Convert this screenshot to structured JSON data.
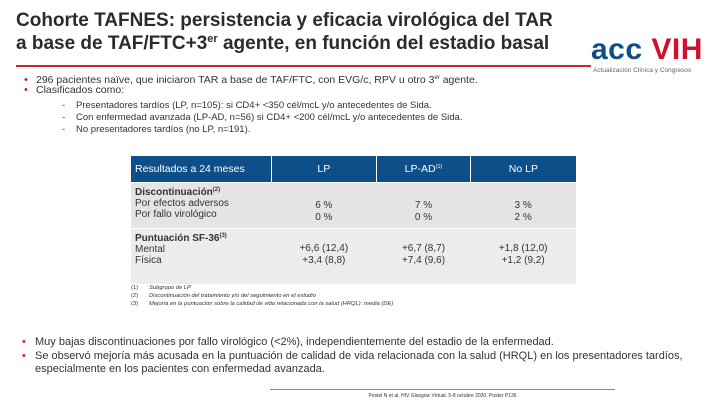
{
  "title": {
    "line1": "Cohorte TAFNES: persistencia y eficacia virológica del TAR",
    "line2_pre": "a base de TAF/FTC+3",
    "line2_sup": "er",
    "line2_post": " agente, en función del estadio basal"
  },
  "logo": {
    "part_a": "acc",
    "part_b": " VIH",
    "subtitle": "Actualización Clínica y Congresos"
  },
  "bullets_top": [
    {
      "pre": "296 pacientes naïve, que iniciaron TAR a base de TAF/FTC, con EVG/c, RPV u otro 3",
      "sup": "er",
      "post": " agente."
    },
    {
      "pre": "Clasificados como:",
      "sup": "",
      "post": ""
    }
  ],
  "subitems": [
    "Presentadores tardíos (LP, n=105): si CD4+ <350 cél/mcL y/o antecedentes de Sida.",
    "Con enfermedad avanzada (LP-AD, n=56) si CD4+ <200 cél/mcL y/o antecedentes de Sida.",
    "No presentadores tardíos (no LP, n=191)."
  ],
  "table": {
    "headers": [
      "Resultados a 24 meses",
      "LP",
      "LP-AD",
      "No LP"
    ],
    "header_sup": "(1)",
    "rows": [
      {
        "label_title": "Discontinuación",
        "label_sup": "(2)",
        "lines": [
          "Por efectos adversos",
          "Por fallo virológico"
        ],
        "lp": [
          "6 %",
          "0 %"
        ],
        "lpad": [
          "7 %",
          "0 %"
        ],
        "nolp": [
          "3 %",
          "2 %"
        ]
      },
      {
        "label_title": "Puntuación SF-36",
        "label_sup": "(3)",
        "lines": [
          "Mental",
          "Física"
        ],
        "lp": [
          "+6,6 (12,4)",
          "+3,4 (8,8)"
        ],
        "lpad": [
          "+6,7 (8,7)",
          "+7,4 (9,6)"
        ],
        "nolp": [
          "+1,8 (12,0)",
          "+1,2 (9,2)"
        ]
      }
    ]
  },
  "footnotes": [
    {
      "num": "(1)",
      "text": "Subgrupo de LP"
    },
    {
      "num": "(2)",
      "text": "Discontinuación del tratamiento y/o del seguimiento en el estudio"
    },
    {
      "num": "(3)",
      "text": "Mejoría en la puntuación sobre la calidad de vida relacionada con la salud (HRQL): media (DE)"
    }
  ],
  "bullets_bottom": [
    "Muy bajas discontinuaciones por fallo virológico (<2%), independientemente del estadio de la enfermedad.",
    "Se observó mejoría más acusada en la puntuación de calidad de vida relacionada con la salud (HRQL) en los presentadores tardíos, especialmente en los pacientes con enfermedad avanzada."
  ],
  "source": "Postel N et al. HIV Glasgow Virtual. 5-8 octubre 2020. Poster P136",
  "colors": {
    "accent": "#c62828",
    "table_header": "#0e4f8a",
    "logo_blue": "#0e4f8a",
    "logo_red": "#d0102e"
  }
}
